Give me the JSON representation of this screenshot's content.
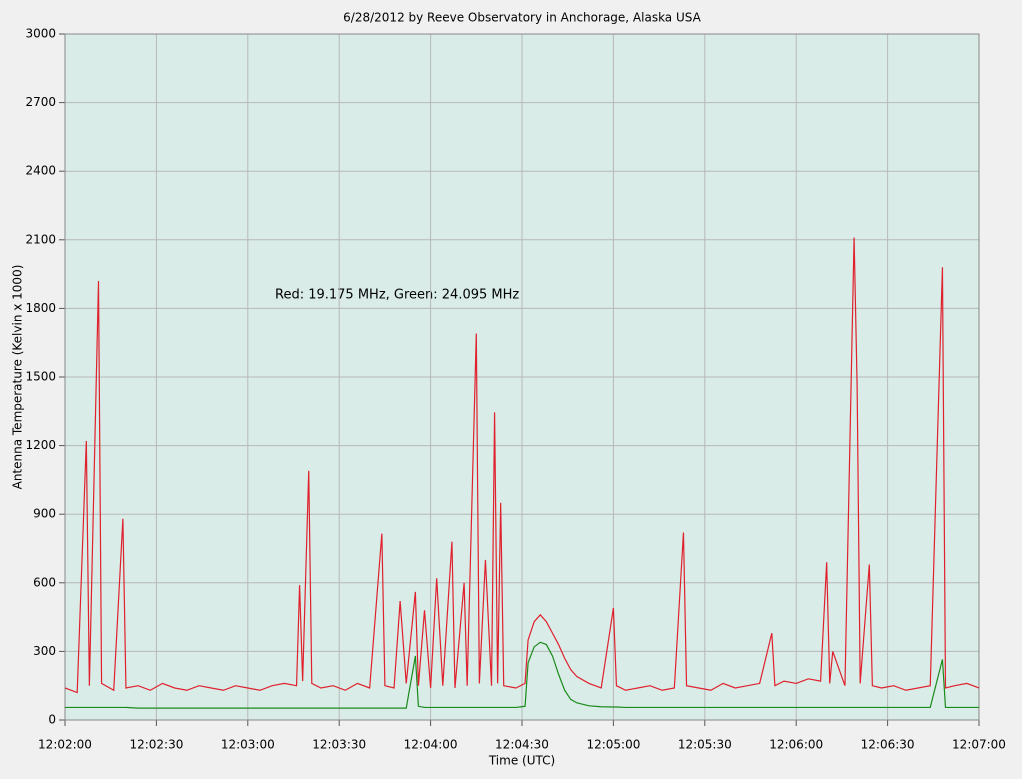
{
  "chart_data": {
    "type": "line",
    "title": "6/28/2012  by  Reeve Observatory  in  Anchorage, Alaska  USA",
    "x_label": "Time (UTC)",
    "y_label": "Antenna Temperature (Kelvin x 1000)",
    "annotation": "Red: 19.175 MHz, Green: 24.095 MHz",
    "x": [
      43320,
      43324,
      43327,
      43328,
      43331,
      43332,
      43336,
      43339,
      43340,
      43344,
      43348,
      43352,
      43356,
      43360,
      43364,
      43368,
      43372,
      43376,
      43380,
      43384,
      43388,
      43392,
      43396,
      43397,
      43398,
      43400,
      43401,
      43404,
      43408,
      43412,
      43416,
      43420,
      43424,
      43425,
      43428,
      43430,
      43432,
      43435,
      43436,
      43438,
      43440,
      43442,
      43444,
      43447,
      43448,
      43451,
      43452,
      43455,
      43456,
      43458,
      43460,
      43461,
      43462,
      43463,
      43464,
      43468,
      43471,
      43472,
      43474,
      43476,
      43478,
      43480,
      43482,
      43484,
      43486,
      43488,
      43492,
      43496,
      43500,
      43501,
      43504,
      43508,
      43512,
      43516,
      43520,
      43523,
      43524,
      43528,
      43532,
      43536,
      43540,
      43544,
      43548,
      43552,
      43553,
      43556,
      43560,
      43564,
      43568,
      43570,
      43571,
      43572,
      43576,
      43579,
      43580,
      43581,
      43584,
      43585,
      43588,
      43592,
      43596,
      43604,
      43608,
      43609,
      43612,
      43616,
      43620
    ],
    "series": [
      {
        "name": "Red",
        "color": "#e0202c",
        "values": [
          140,
          120,
          1220,
          150,
          1920,
          160,
          130,
          880,
          140,
          150,
          130,
          160,
          140,
          130,
          150,
          140,
          130,
          150,
          140,
          130,
          150,
          160,
          150,
          590,
          170,
          1090,
          160,
          140,
          150,
          130,
          160,
          140,
          815,
          150,
          140,
          520,
          160,
          560,
          150,
          480,
          140,
          620,
          150,
          780,
          140,
          600,
          150,
          1690,
          160,
          700,
          150,
          1345,
          160,
          950,
          150,
          140,
          160,
          350,
          430,
          460,
          430,
          380,
          330,
          270,
          220,
          190,
          160,
          140,
          490,
          150,
          130,
          140,
          150,
          130,
          140,
          820,
          150,
          140,
          130,
          160,
          140,
          150,
          160,
          380,
          150,
          170,
          160,
          180,
          170,
          690,
          160,
          300,
          150,
          2110,
          1460,
          160,
          680,
          150,
          140,
          150,
          130,
          150,
          1980,
          140,
          150,
          160,
          140
        ]
      },
      {
        "name": "Green",
        "color": "#1a8a1a",
        "values": [
          55,
          55,
          55,
          55,
          55,
          55,
          55,
          55,
          55,
          52,
          52,
          52,
          52,
          52,
          52,
          52,
          52,
          52,
          52,
          52,
          52,
          52,
          52,
          52,
          52,
          52,
          52,
          52,
          52,
          52,
          52,
          52,
          52,
          52,
          52,
          52,
          52,
          280,
          60,
          55,
          55,
          55,
          55,
          55,
          55,
          55,
          55,
          55,
          55,
          55,
          55,
          55,
          55,
          55,
          55,
          55,
          60,
          250,
          320,
          340,
          330,
          280,
          200,
          130,
          90,
          75,
          62,
          58,
          57,
          57,
          55,
          55,
          55,
          55,
          55,
          55,
          55,
          55,
          55,
          55,
          55,
          55,
          55,
          55,
          55,
          55,
          55,
          55,
          55,
          55,
          55,
          55,
          55,
          55,
          55,
          55,
          55,
          55,
          55,
          55,
          55,
          55,
          265,
          55,
          55,
          55,
          55
        ]
      }
    ],
    "xlim": [
      43320,
      43620
    ],
    "xticks": [
      {
        "value": 43320,
        "label": "12:02:00"
      },
      {
        "value": 43350,
        "label": "12:02:30"
      },
      {
        "value": 43380,
        "label": "12:03:00"
      },
      {
        "value": 43410,
        "label": "12:03:30"
      },
      {
        "value": 43440,
        "label": "12:04:00"
      },
      {
        "value": 43470,
        "label": "12:04:30"
      },
      {
        "value": 43500,
        "label": "12:05:00"
      },
      {
        "value": 43530,
        "label": "12:05:30"
      },
      {
        "value": 43560,
        "label": "12:06:00"
      },
      {
        "value": 43590,
        "label": "12:06:30"
      },
      {
        "value": 43620,
        "label": "12:07:00"
      }
    ],
    "ylim": [
      0,
      3000
    ],
    "yticks": [
      0,
      300,
      600,
      900,
      1200,
      1500,
      1800,
      2100,
      2400,
      2700,
      3000
    ],
    "grid": true
  }
}
